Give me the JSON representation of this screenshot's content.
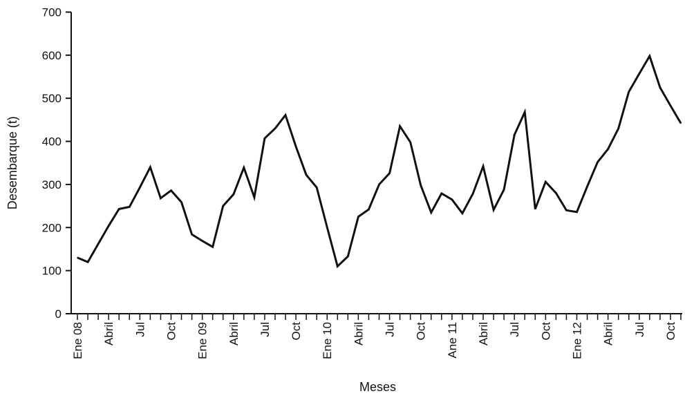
{
  "chart_data": {
    "type": "line",
    "title": "",
    "xlabel": "Meses",
    "ylabel": "Desembarque (t)",
    "ylim": [
      0,
      700
    ],
    "yticks": [
      0,
      100,
      200,
      300,
      400,
      500,
      600,
      700
    ],
    "grid": false,
    "legend": "none",
    "line_color": "#111111",
    "x_tick_labels": [
      {
        "index": 0,
        "label": "Ene 08"
      },
      {
        "index": 3,
        "label": "Abril"
      },
      {
        "index": 6,
        "label": "Jul"
      },
      {
        "index": 9,
        "label": "Oct"
      },
      {
        "index": 12,
        "label": "Ene 09"
      },
      {
        "index": 15,
        "label": "Abril"
      },
      {
        "index": 18,
        "label": "Jul"
      },
      {
        "index": 21,
        "label": "Oct"
      },
      {
        "index": 24,
        "label": "Ene 10"
      },
      {
        "index": 27,
        "label": "Abril"
      },
      {
        "index": 30,
        "label": "Jul"
      },
      {
        "index": 33,
        "label": "Oct"
      },
      {
        "index": 36,
        "label": "Ane 11"
      },
      {
        "index": 39,
        "label": "Abril"
      },
      {
        "index": 42,
        "label": "Jul"
      },
      {
        "index": 45,
        "label": "Oct"
      },
      {
        "index": 48,
        "label": "Ene 12"
      },
      {
        "index": 51,
        "label": "Abril"
      },
      {
        "index": 54,
        "label": "Jul"
      },
      {
        "index": 57,
        "label": "Oct"
      }
    ],
    "series": [
      {
        "values": [
          130,
          120,
          162,
          204,
          243,
          248,
          293,
          340,
          268,
          286,
          259,
          184,
          169,
          155,
          250,
          277,
          339,
          270,
          407,
          430,
          461,
          388,
          322,
          293,
          201,
          110,
          133,
          225,
          242,
          300,
          326,
          435,
          398,
          298,
          235,
          279,
          265,
          233,
          278,
          342,
          241,
          288,
          415,
          468,
          243,
          306,
          280,
          240,
          236,
          295,
          352,
          382,
          430,
          515,
          557,
          598,
          525,
          483,
          442
        ]
      }
    ]
  }
}
